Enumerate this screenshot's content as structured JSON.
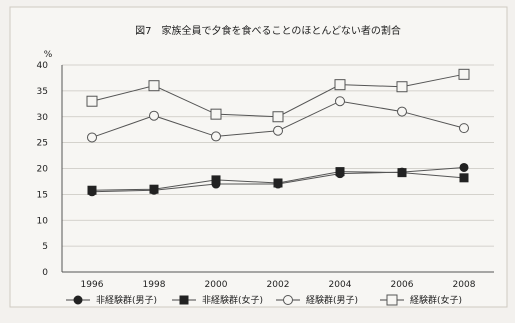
{
  "chart_data": {
    "type": "line",
    "title": "図7　家族全員で夕食を食べることのほとんどない者の割合",
    "ylabel": "%",
    "xlabel": "",
    "categories": [
      "1996",
      "1998",
      "2000",
      "2002",
      "2004",
      "2006",
      "2008"
    ],
    "ylim": [
      0,
      40
    ],
    "yticks": [
      0,
      5,
      10,
      15,
      20,
      25,
      30,
      35,
      40
    ],
    "grid": true,
    "legend_position": "bottom",
    "series": [
      {
        "name": "非経験群(男子)",
        "marker": "filled-circle",
        "values": [
          15.5,
          15.8,
          17.0,
          17.0,
          19.0,
          19.3,
          20.2
        ]
      },
      {
        "name": "非経験群(女子)",
        "marker": "filled-square",
        "values": [
          15.8,
          16.0,
          17.8,
          17.2,
          19.4,
          19.2,
          18.2
        ]
      },
      {
        "name": "経験群(男子)",
        "marker": "open-circle",
        "values": [
          26.0,
          30.2,
          26.2,
          27.3,
          33.0,
          31.0,
          27.8
        ]
      },
      {
        "name": "経験群(女子)",
        "marker": "open-square",
        "values": [
          33.0,
          36.0,
          30.5,
          30.0,
          36.2,
          35.8,
          38.2
        ]
      }
    ]
  }
}
